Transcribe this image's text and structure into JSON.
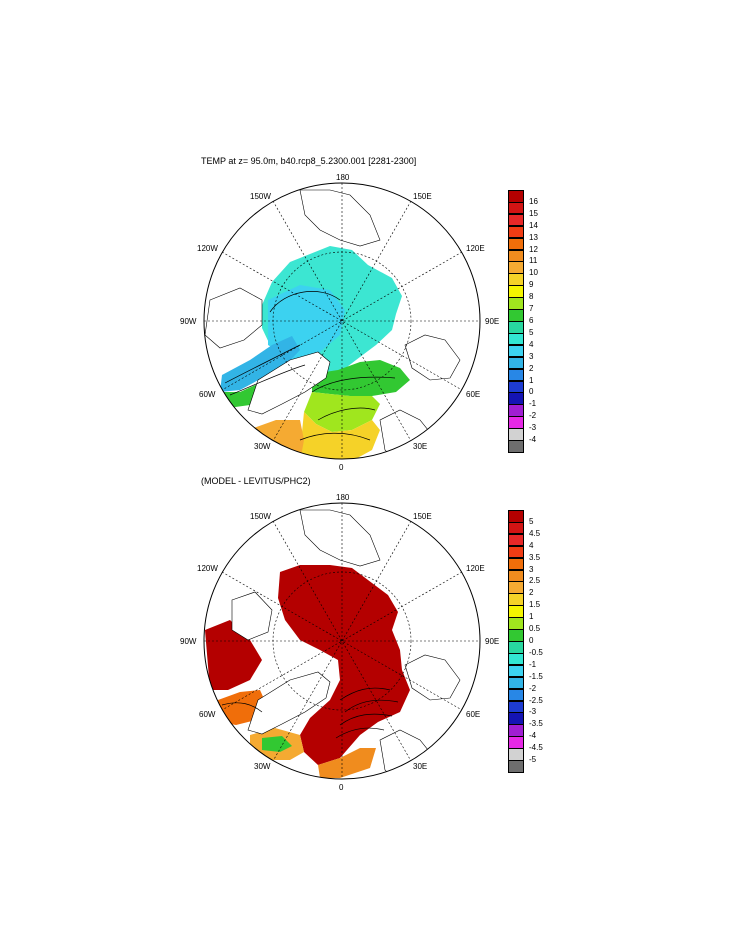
{
  "panels": [
    {
      "id": "top",
      "title": "TEMP at z=  95.0m, b40.rcp8_5.2300.001 [2281-2300]",
      "colorbar": {
        "labels": [
          "16",
          "15",
          "14",
          "13",
          "12",
          "11",
          "10",
          "9",
          "8",
          "7",
          "6",
          "5",
          "4",
          "3",
          "2",
          "1",
          "0",
          "-1",
          "-2",
          "-3",
          "-4"
        ],
        "colors": [
          "#b40000",
          "#d21414",
          "#e62828",
          "#f03c14",
          "#f06e0a",
          "#f08c1e",
          "#f5aa32",
          "#f5d228",
          "#f5f500",
          "#a0e61e",
          "#32c832",
          "#28d7a0",
          "#32e6d2",
          "#3cd2f0",
          "#32b4e6",
          "#2887e6",
          "#1e3cd2",
          "#1414b4",
          "#a01ed2",
          "#e628e6",
          "#d2d2d2",
          "#6e6e6e"
        ]
      },
      "lon_labels": [
        "180",
        "150E",
        "120E",
        "90E",
        "60E",
        "30E",
        "0",
        "30W",
        "60W",
        "90W",
        "120W",
        "150W"
      ]
    },
    {
      "id": "bottom",
      "title": "(MODEL - LEVITUS/PHC2)",
      "colorbar": {
        "labels": [
          "5",
          "4.5",
          "4",
          "3.5",
          "3",
          "2.5",
          "2",
          "1.5",
          "1",
          "0.5",
          "0",
          "-0.5",
          "-1",
          "-1.5",
          "-2",
          "-2.5",
          "-3",
          "-3.5",
          "-4",
          "-4.5",
          "-5"
        ],
        "colors": [
          "#b40000",
          "#d21414",
          "#e62828",
          "#f03c14",
          "#f06e0a",
          "#f08c1e",
          "#f5aa32",
          "#f5d228",
          "#f5f500",
          "#a0e61e",
          "#32c832",
          "#28d7a0",
          "#32e6d2",
          "#3cd2f0",
          "#32b4e6",
          "#2887e6",
          "#1e3cd2",
          "#1414b4",
          "#a01ed2",
          "#e628e6",
          "#d2d2d2",
          "#6e6e6e"
        ]
      },
      "lon_labels": [
        "180",
        "150E",
        "120E",
        "90E",
        "60E",
        "30E",
        "0",
        "30W",
        "60W",
        "90W",
        "120W",
        "150W"
      ]
    }
  ]
}
